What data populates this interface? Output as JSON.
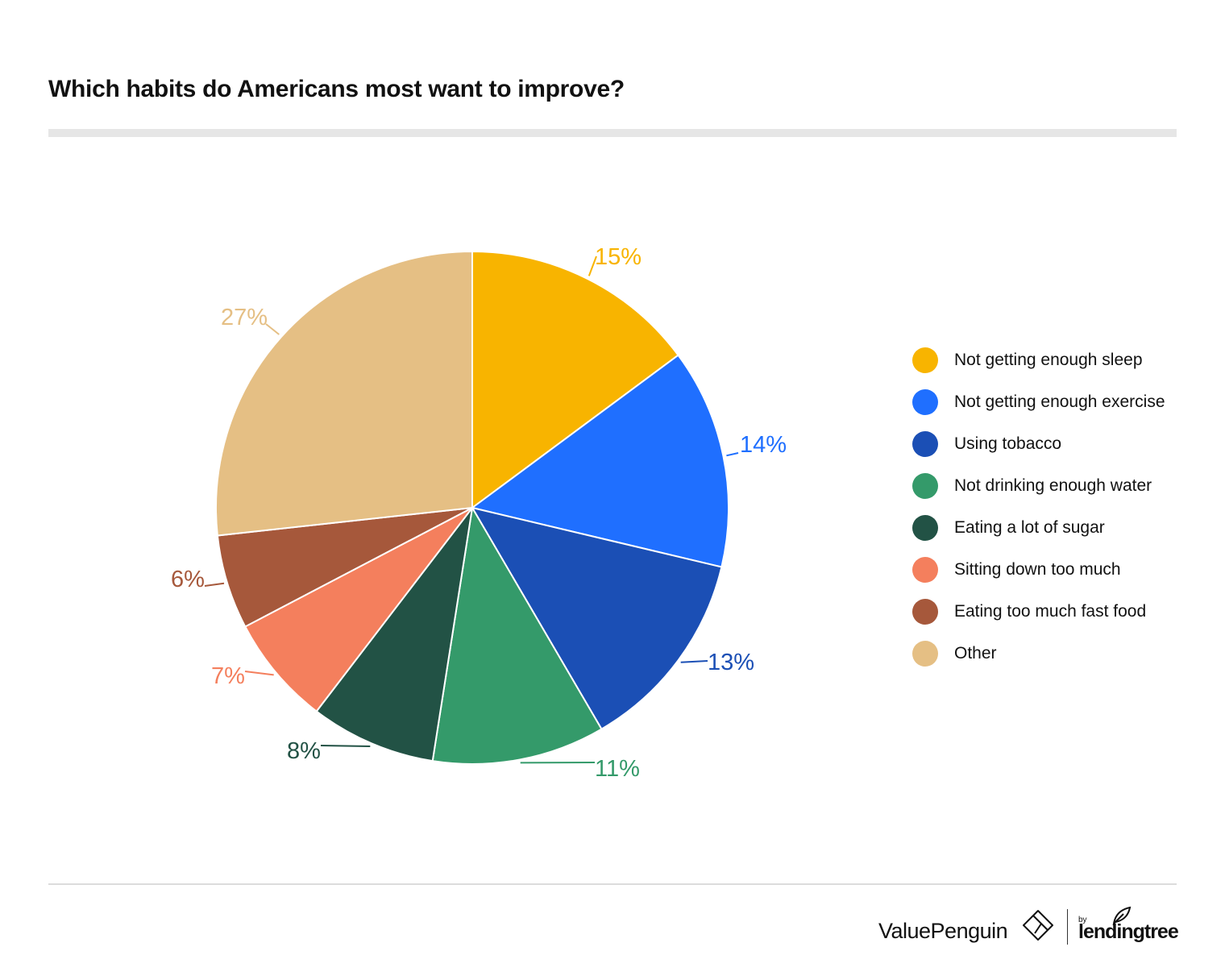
{
  "title": "Which habits do Americans most want to improve?",
  "brand": {
    "name": "ValuePenguin",
    "by": "by",
    "partner": "lendingtree"
  },
  "chart_data": {
    "type": "pie",
    "title": "Which habits do Americans most want to improve?",
    "categories": [
      "Not getting enough sleep",
      "Not getting enough exercise",
      "Using tobacco",
      "Not drinking enough water",
      "Eating a lot of sugar",
      "Sitting down too much",
      "Eating too much fast food",
      "Other"
    ],
    "values": [
      15,
      14,
      13,
      11,
      8,
      7,
      6,
      27
    ],
    "value_labels": [
      "15%",
      "14%",
      "13%",
      "11%",
      "8%",
      "7%",
      "6%",
      "27%"
    ],
    "colors": [
      "#f8b400",
      "#1f6fff",
      "#1b4fb5",
      "#349a6a",
      "#225245",
      "#f47f5d",
      "#a6583b",
      "#e5bf84"
    ],
    "start_angle": "12 o'clock",
    "direction": "clockwise",
    "legend_position": "right"
  }
}
